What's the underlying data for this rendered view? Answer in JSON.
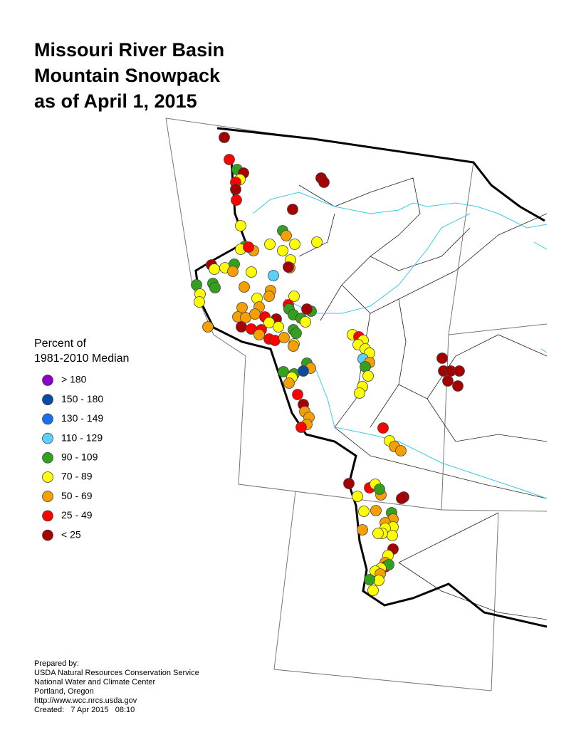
{
  "title": [
    "Missouri River Basin",
    "Mountain Snowpack",
    "as of April 1, 2015"
  ],
  "legend": {
    "title": [
      "Percent of",
      "1981-2010 Median"
    ],
    "items": [
      {
        "label": "> 180",
        "color": "#8b00c8"
      },
      {
        "label": "150 - 180",
        "color": "#0a4aa0"
      },
      {
        "label": "130 - 149",
        "color": "#1a6ff0"
      },
      {
        "label": "110 - 129",
        "color": "#5ccfff"
      },
      {
        "label": "90 - 109",
        "color": "#33a01e"
      },
      {
        "label": "70 - 89",
        "color": "#ffff00"
      },
      {
        "label": "50 - 69",
        "color": "#f5a000"
      },
      {
        "label": "25 - 49",
        "color": "#ff0000"
      },
      {
        "label": "< 25",
        "color": "#a50000"
      }
    ]
  },
  "footer": [
    "Prepared by:",
    "USDA Natural Resources Conservation Service",
    "National Water and Climate Center",
    "Portland, Oregon",
    "http://www.wcc.nrcs.usda.gov",
    "Created:   7 Apr 2015   08:10"
  ]
}
